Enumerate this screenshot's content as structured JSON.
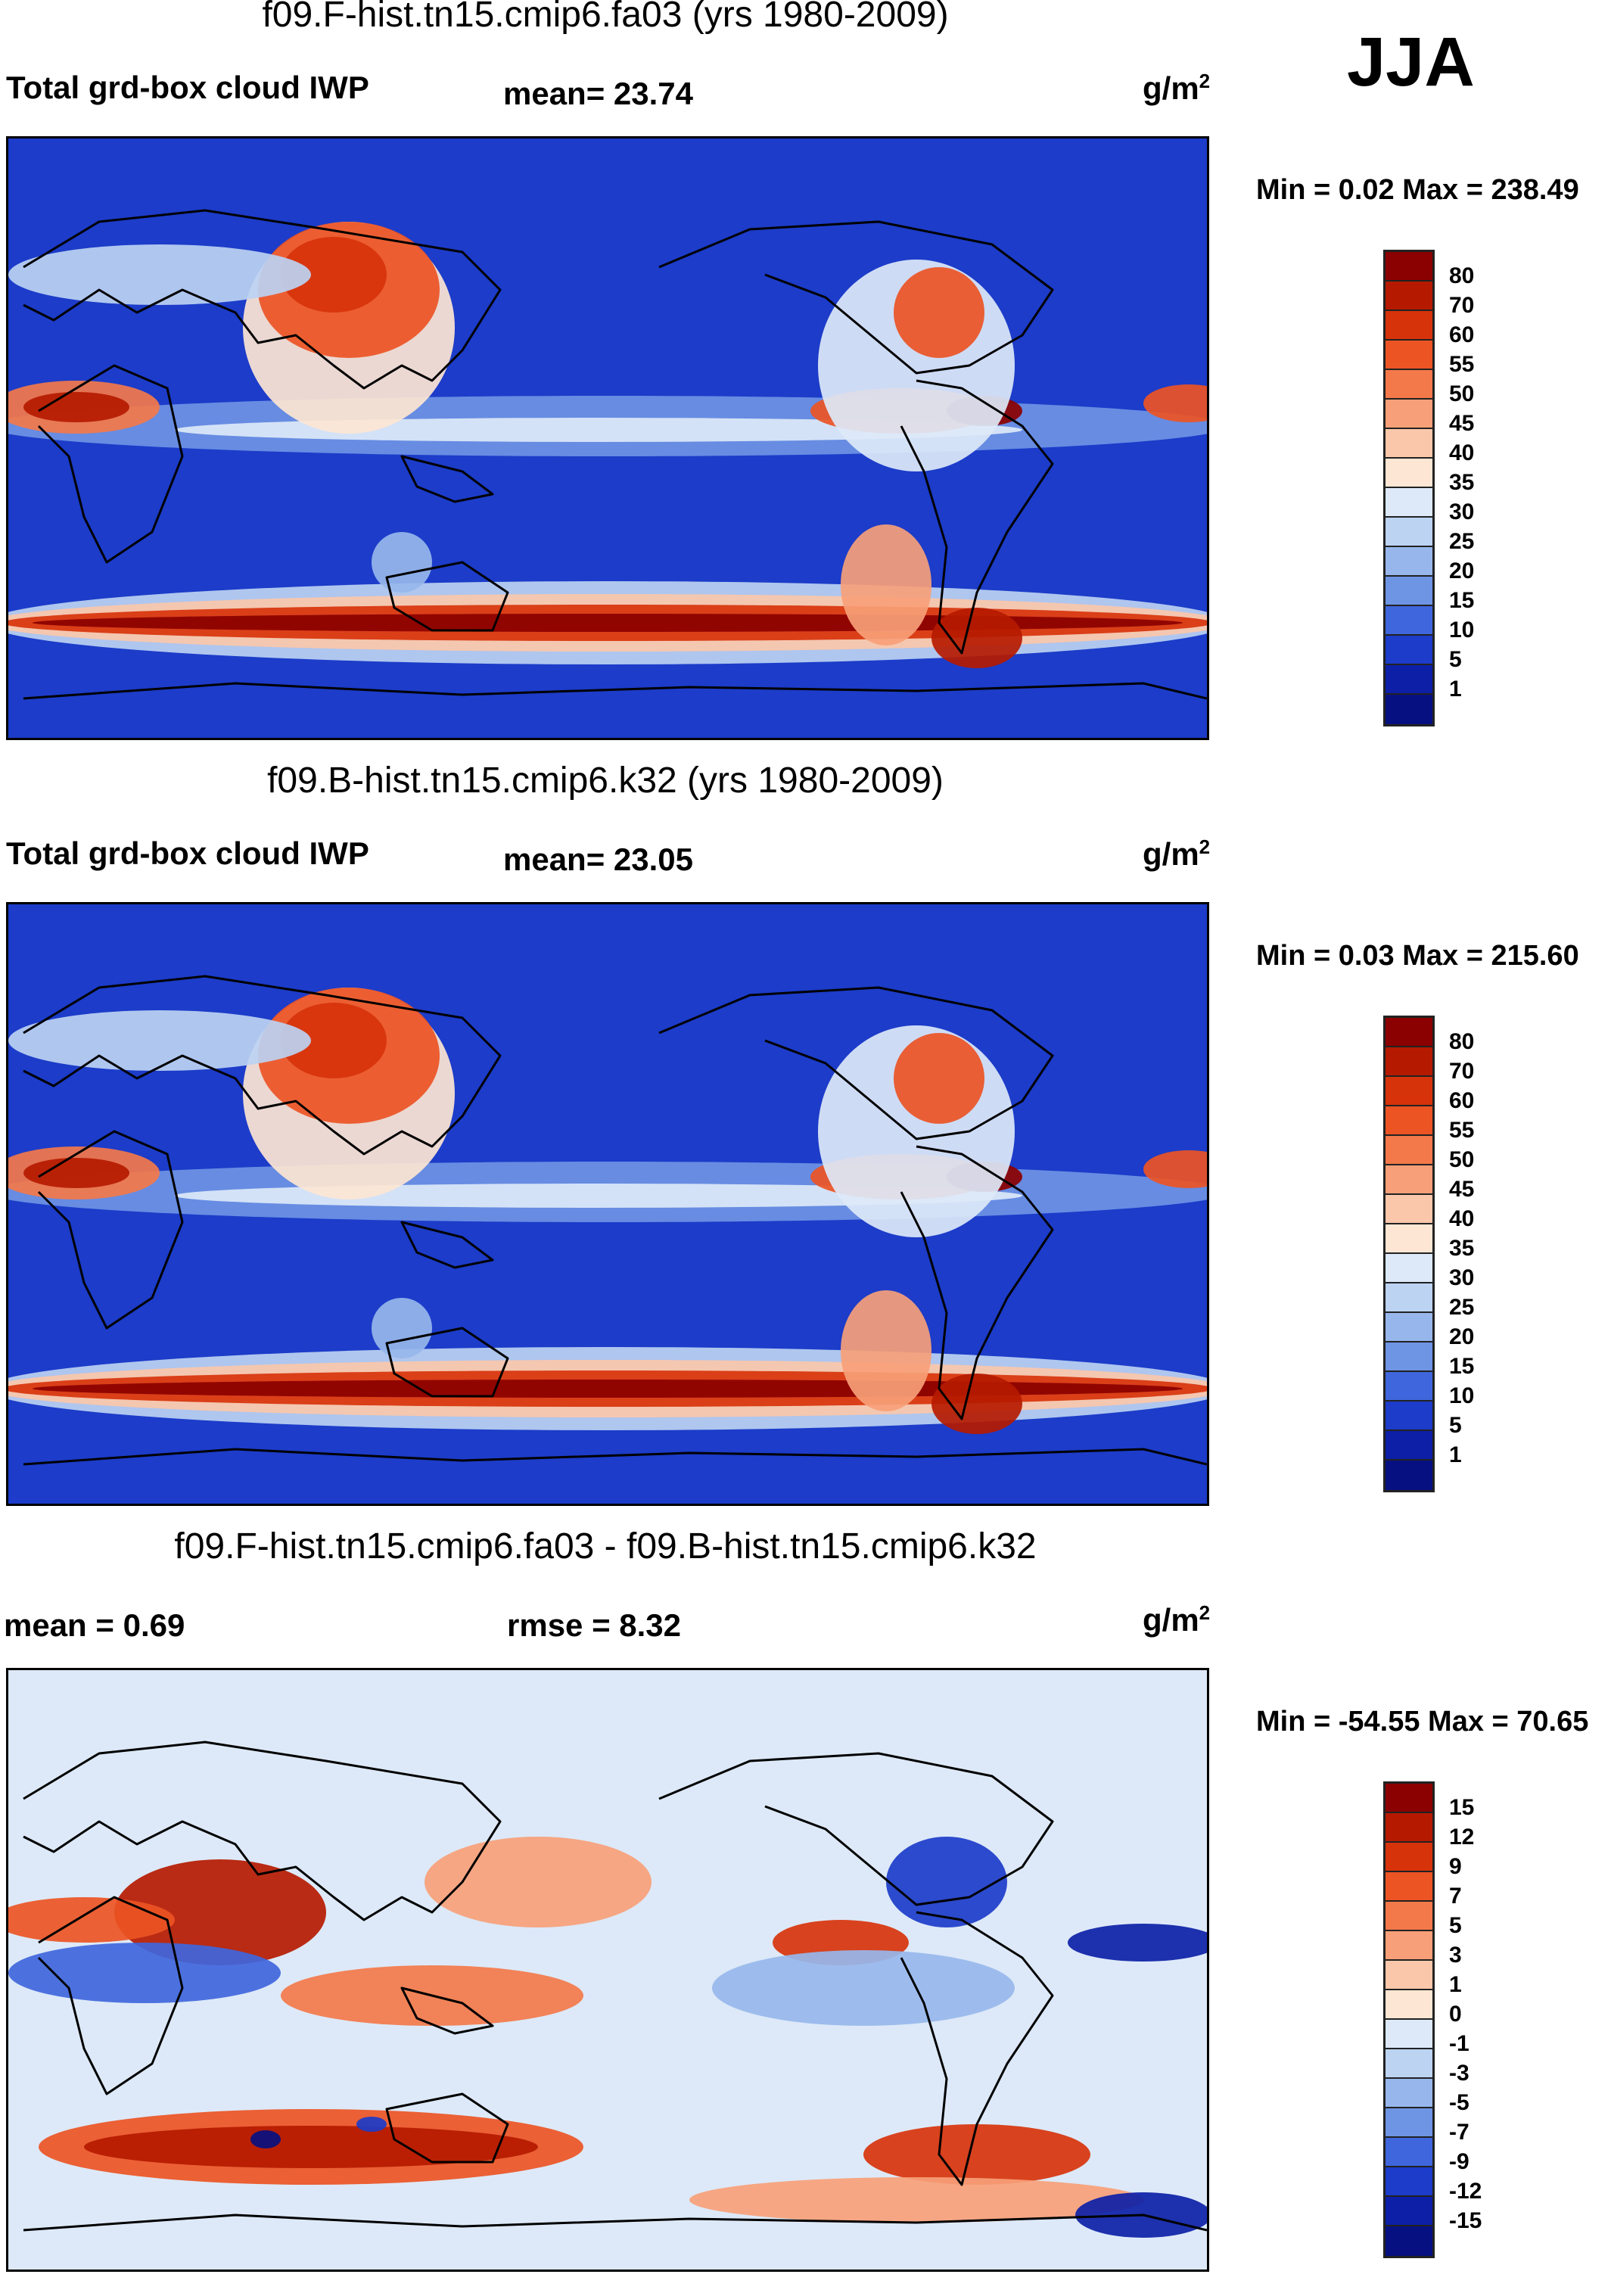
{
  "season": "JJA",
  "panels": [
    {
      "title": "f09.F-hist.tn15.cmip6.fa03 (yrs 1980-2009)",
      "left_label": "Total grd-box cloud IWP",
      "center_label": "mean=  23.74",
      "units_base": "g/m",
      "units_exp": "2",
      "minmax": "Min =   0.02 Max = 238.49",
      "kind": "field"
    },
    {
      "title": "f09.B-hist.tn15.cmip6.k32 (yrs 1980-2009)",
      "left_label": "Total grd-box cloud IWP",
      "center_label": "mean=  23.05",
      "units_base": "g/m",
      "units_exp": "2",
      "minmax": "Min =   0.03 Max = 215.60",
      "kind": "field"
    },
    {
      "title": "f09.F-hist.tn15.cmip6.fa03 - f09.B-hist.tn15.cmip6.k32",
      "left_label": "mean =   0.69",
      "center_label": "rmse =   8.32",
      "units_base": "g/m",
      "units_exp": "2",
      "minmax": "Min = -54.55 Max =  70.65",
      "kind": "diff"
    }
  ],
  "colorbars": {
    "field": {
      "labels": [
        "80",
        "70",
        "60",
        "55",
        "50",
        "45",
        "40",
        "35",
        "30",
        "25",
        "20",
        "15",
        "10",
        "5",
        "1"
      ],
      "colors": [
        "#8b0000",
        "#b51a00",
        "#d7330b",
        "#ec5424",
        "#f3784a",
        "#f79f78",
        "#fac7aa",
        "#fde6d3",
        "#dde9f8",
        "#bcd3f2",
        "#97b7ec",
        "#6e94e4",
        "#3f66dc",
        "#1c3cc9",
        "#0c1fa6",
        "#071080"
      ]
    },
    "diff": {
      "labels": [
        "15",
        "12",
        "9",
        "7",
        "5",
        "3",
        "1",
        "0",
        "-1",
        "-3",
        "-5",
        "-7",
        "-9",
        "-12",
        "-15"
      ],
      "colors": [
        "#8b0000",
        "#b51a00",
        "#d7330b",
        "#ec5424",
        "#f3784a",
        "#f79f78",
        "#fac7aa",
        "#fde6d3",
        "#dde9f8",
        "#bcd3f2",
        "#97b7ec",
        "#6e94e4",
        "#3f66dc",
        "#1c3cc9",
        "#0c1fa6",
        "#071080"
      ]
    }
  }
}
